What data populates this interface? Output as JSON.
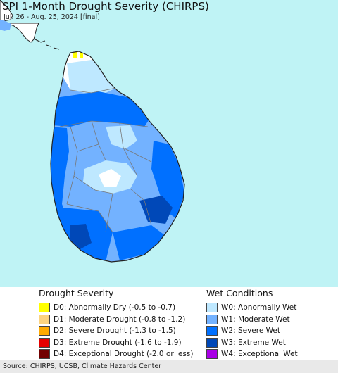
{
  "title": "SPI 1-Month Drought Severity (CHIRPS)",
  "subtitle": "Jul. 26 - Aug. 25, 2024 [final]",
  "colors": {
    "sea": "#bff3f5",
    "land_outside": "#ffffff",
    "coast": "#222222",
    "district_border": "#777777"
  },
  "legend": {
    "drought": {
      "title": "Drought Severity",
      "items": [
        {
          "code": "D0",
          "label": "D0: Abnormally Dry (-0.5 to -0.7)",
          "color": "#ffff00"
        },
        {
          "code": "D1",
          "label": "D1: Moderate Drought (-0.8 to -1.2)",
          "color": "#fcd37f"
        },
        {
          "code": "D2",
          "label": "D2: Severe Drought (-1.3 to -1.5)",
          "color": "#ffaa00"
        },
        {
          "code": "D3",
          "label": "D3: Extreme Drought (-1.6 to -1.9)",
          "color": "#e60000"
        },
        {
          "code": "D4",
          "label": "D4: Exceptional Drought (-2.0 or less)",
          "color": "#730000"
        }
      ]
    },
    "wet": {
      "title": "Wet Conditions",
      "items": [
        {
          "code": "W0",
          "label": "W0: Abnormally Wet",
          "color": "#bee8ff"
        },
        {
          "code": "W1",
          "label": "W1: Moderate Wet",
          "color": "#73b2ff"
        },
        {
          "code": "W2",
          "label": "W2: Severe Wet",
          "color": "#0070ff"
        },
        {
          "code": "W3",
          "label": "W3: Extreme Wet",
          "color": "#0048b8"
        },
        {
          "code": "W4",
          "label": "W4: Exceptional Wet",
          "color": "#a900e6"
        }
      ]
    }
  },
  "footer": {
    "source": "Source: CHIRPS, UCSB, Climate Hazards Center"
  }
}
